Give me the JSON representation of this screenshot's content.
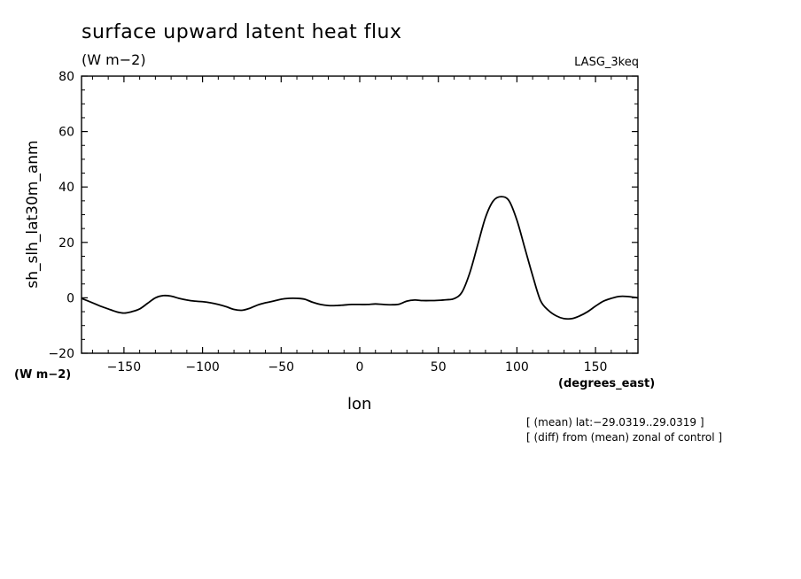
{
  "header": {
    "title": "surface upward latent heat flux",
    "units": "(W m−2)",
    "model": "LASG_3keq"
  },
  "footer": {
    "xlabel": "lon",
    "xunits": "(degrees_east)",
    "yunits": "(W m−2)",
    "note1": "[ (mean) lat:−29.0319..29.0319 ]",
    "note2": "[ (diff) from (mean) zonal of control ]"
  },
  "colors": {
    "line": "#000000",
    "background": "#ffffff"
  },
  "chart_data": {
    "type": "line",
    "title": "surface upward latent heat flux",
    "subtitle": "(W m−2)",
    "xlabel": "lon",
    "ylabel": "sh_slh_lat30m_anm",
    "xlim": [
      -177,
      177
    ],
    "ylim": [
      -20,
      80
    ],
    "xticks": [
      -150,
      -100,
      -50,
      0,
      50,
      100,
      150
    ],
    "xtick_labels": [
      "−150",
      "−100",
      "−50",
      "0",
      "50",
      "100",
      "150"
    ],
    "yticks": [
      -20,
      0,
      20,
      40,
      60,
      80
    ],
    "ytick_labels": [
      "−20",
      "0",
      "20",
      "40",
      "60",
      "80"
    ],
    "grid": false,
    "series": [
      {
        "x": [
          -177,
          -170,
          -165,
          -160,
          -155,
          -150,
          -145,
          -140,
          -135,
          -130,
          -125,
          -120,
          -115,
          -110,
          -105,
          -100,
          -95,
          -90,
          -85,
          -80,
          -75,
          -70,
          -65,
          -60,
          -55,
          -50,
          -45,
          -40,
          -35,
          -30,
          -25,
          -20,
          -15,
          -10,
          -5,
          0,
          5,
          10,
          15,
          20,
          25,
          30,
          35,
          40,
          45,
          50,
          55,
          60,
          65,
          70,
          75,
          80,
          85,
          90,
          95,
          100,
          105,
          110,
          115,
          120,
          125,
          130,
          135,
          140,
          145,
          150,
          155,
          160,
          165,
          170,
          177
        ],
        "y": [
          -0.2,
          -1.8,
          -3,
          -4,
          -5,
          -5.5,
          -5,
          -4,
          -2,
          0,
          0.8,
          0.6,
          -0.2,
          -0.8,
          -1.2,
          -1.4,
          -1.8,
          -2.4,
          -3.2,
          -4.2,
          -4.5,
          -3.8,
          -2.6,
          -1.8,
          -1.2,
          -0.5,
          -0.2,
          -0.2,
          -0.5,
          -1.6,
          -2.4,
          -2.8,
          -2.8,
          -2.6,
          -2.4,
          -2.4,
          -2.4,
          -2.2,
          -2.4,
          -2.5,
          -2.3,
          -1.2,
          -0.8,
          -1,
          -1,
          -0.9,
          -0.7,
          -0.3,
          2,
          9,
          19,
          29,
          35,
          36.5,
          35,
          28,
          18,
          8,
          -1,
          -4.5,
          -6.5,
          -7.5,
          -7.5,
          -6.5,
          -5,
          -3,
          -1.2,
          -0.2,
          0.5,
          0.5,
          0
        ]
      }
    ]
  }
}
